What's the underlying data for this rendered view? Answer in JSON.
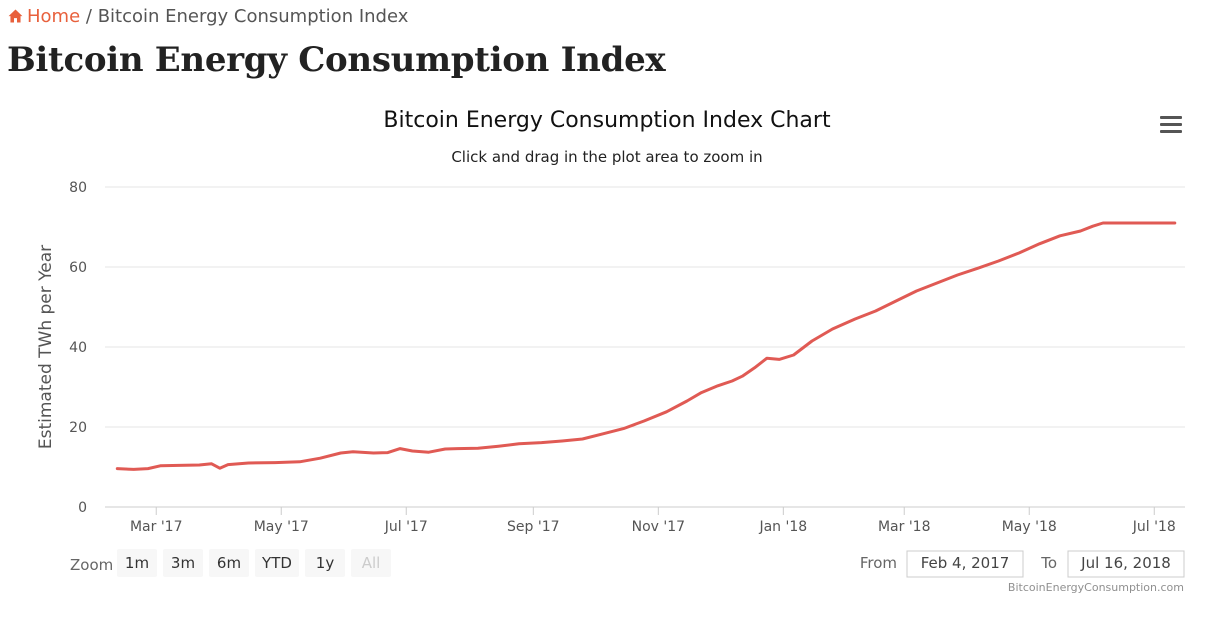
{
  "breadcrumb": {
    "home_label": "Home",
    "separator": "/",
    "current": "Bitcoin Energy Consumption Index"
  },
  "page": {
    "title": "Bitcoin Energy Consumption Index"
  },
  "colors": {
    "accent": "#e8603c",
    "series_line": "#e05a54",
    "grid": "#e6e6e6"
  },
  "icons": {
    "home": "home-icon",
    "menu": "hamburger-menu-icon"
  },
  "zoom": {
    "label": "Zoom",
    "buttons": [
      "1m",
      "3m",
      "6m",
      "YTD",
      "1y",
      "All"
    ],
    "disabled": [
      "All"
    ]
  },
  "range": {
    "from_label": "From",
    "from_value": "Feb 4, 2017",
    "to_label": "To",
    "to_value": "Jul 16, 2018"
  },
  "credits": "BitcoinEnergyConsumption.com",
  "chart_data": {
    "type": "line",
    "title": "Bitcoin Energy Consumption Index Chart",
    "subtitle": "Click and drag in the plot area to zoom in",
    "xlabel": "",
    "ylabel": "Estimated TWh per Year",
    "ylim": [
      0,
      80
    ],
    "yticks": [
      0,
      20,
      40,
      60,
      80
    ],
    "grid": true,
    "xlim": [
      "2017-02-04",
      "2018-07-16"
    ],
    "xticks": [
      {
        "date": "2017-03-01",
        "label": "Mar '17"
      },
      {
        "date": "2017-05-01",
        "label": "May '17"
      },
      {
        "date": "2017-07-01",
        "label": "Jul '17"
      },
      {
        "date": "2017-09-01",
        "label": "Sep '17"
      },
      {
        "date": "2017-11-01",
        "label": "Nov '17"
      },
      {
        "date": "2018-01-01",
        "label": "Jan '18"
      },
      {
        "date": "2018-03-01",
        "label": "Mar '18"
      },
      {
        "date": "2018-05-01",
        "label": "May '18"
      },
      {
        "date": "2018-07-01",
        "label": "Jul '18"
      }
    ],
    "series": [
      {
        "name": "Bitcoin Energy Consumption Index",
        "points": [
          [
            "2017-02-10",
            9.6
          ],
          [
            "2017-02-18",
            9.4
          ],
          [
            "2017-02-25",
            9.6
          ],
          [
            "2017-03-03",
            10.3
          ],
          [
            "2017-03-12",
            10.4
          ],
          [
            "2017-03-22",
            10.5
          ],
          [
            "2017-03-28",
            10.8
          ],
          [
            "2017-04-01",
            9.7
          ],
          [
            "2017-04-05",
            10.6
          ],
          [
            "2017-04-15",
            11.0
          ],
          [
            "2017-04-28",
            11.1
          ],
          [
            "2017-05-10",
            11.3
          ],
          [
            "2017-05-20",
            12.2
          ],
          [
            "2017-05-30",
            13.5
          ],
          [
            "2017-06-05",
            13.8
          ],
          [
            "2017-06-15",
            13.5
          ],
          [
            "2017-06-22",
            13.6
          ],
          [
            "2017-06-28",
            14.6
          ],
          [
            "2017-07-04",
            14.0
          ],
          [
            "2017-07-12",
            13.7
          ],
          [
            "2017-07-20",
            14.5
          ],
          [
            "2017-07-26",
            14.6
          ],
          [
            "2017-08-05",
            14.7
          ],
          [
            "2017-08-15",
            15.2
          ],
          [
            "2017-08-25",
            15.8
          ],
          [
            "2017-09-05",
            16.1
          ],
          [
            "2017-09-15",
            16.5
          ],
          [
            "2017-09-25",
            17.0
          ],
          [
            "2017-10-05",
            18.3
          ],
          [
            "2017-10-15",
            19.6
          ],
          [
            "2017-10-25",
            21.5
          ],
          [
            "2017-11-05",
            23.8
          ],
          [
            "2017-11-15",
            26.5
          ],
          [
            "2017-11-22",
            28.6
          ],
          [
            "2017-11-30",
            30.3
          ],
          [
            "2017-12-07",
            31.5
          ],
          [
            "2017-12-12",
            32.7
          ],
          [
            "2017-12-18",
            34.8
          ],
          [
            "2017-12-24",
            37.2
          ],
          [
            "2017-12-30",
            36.9
          ],
          [
            "2018-01-06",
            38.0
          ],
          [
            "2018-01-15",
            41.5
          ],
          [
            "2018-01-25",
            44.5
          ],
          [
            "2018-02-05",
            47.0
          ],
          [
            "2018-02-15",
            49.0
          ],
          [
            "2018-02-25",
            51.5
          ],
          [
            "2018-03-07",
            54.0
          ],
          [
            "2018-03-17",
            56.0
          ],
          [
            "2018-03-27",
            58.0
          ],
          [
            "2018-04-06",
            59.7
          ],
          [
            "2018-04-16",
            61.5
          ],
          [
            "2018-04-26",
            63.5
          ],
          [
            "2018-05-06",
            65.8
          ],
          [
            "2018-05-16",
            67.8
          ],
          [
            "2018-05-26",
            69.0
          ],
          [
            "2018-06-01",
            70.2
          ],
          [
            "2018-06-06",
            71.0
          ],
          [
            "2018-06-16",
            71.0
          ],
          [
            "2018-06-30",
            71.0
          ],
          [
            "2018-07-11",
            71.0
          ]
        ]
      }
    ]
  }
}
